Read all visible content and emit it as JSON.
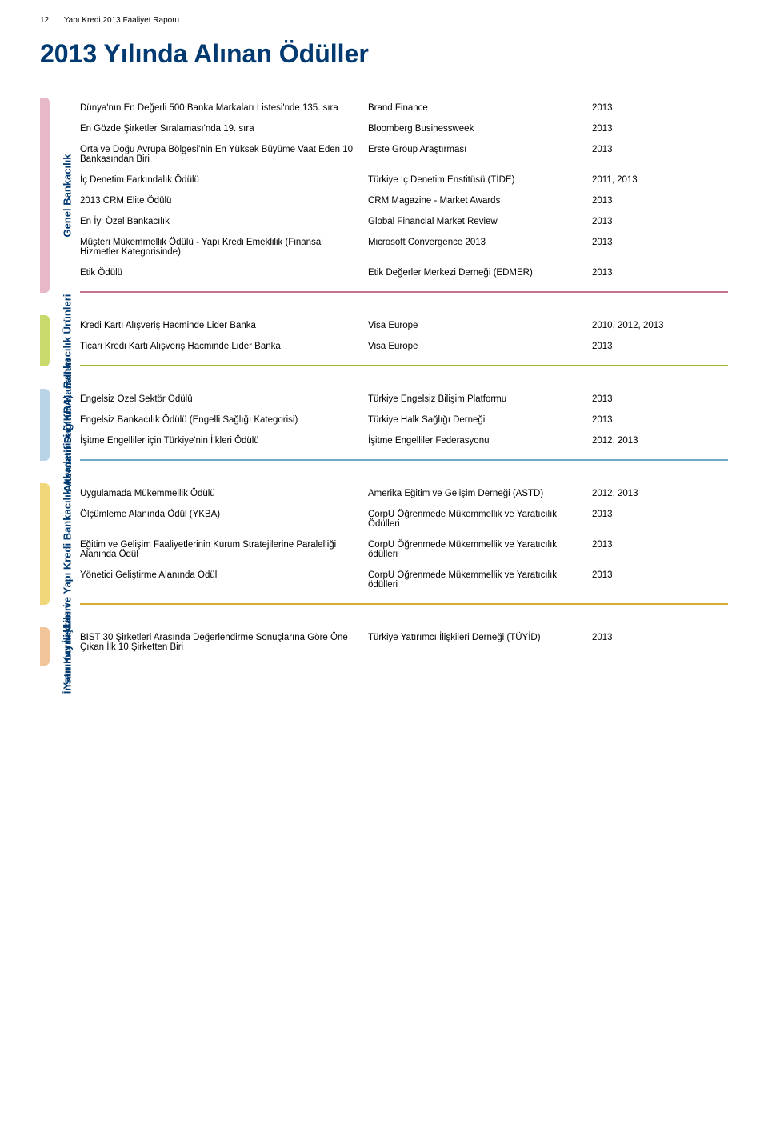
{
  "header": {
    "page_num": "12",
    "doc_title": "Yapı Kredi 2013 Faaliyet Raporu"
  },
  "title": "2013 Yılında Alınan Ödüller",
  "colors": {
    "title": "#003a70",
    "s1_tab": "#e6b8c8",
    "s1_border": "#c4738f",
    "s2_tab": "#c9d96a",
    "s2_border": "#9fb82e",
    "s3_tab": "#b8d4e6",
    "s3_border": "#6fa8c9",
    "s4_tab": "#f2d67a",
    "s4_border": "#d6af2e",
    "s5_tab": "#f2c49a",
    "s5_border": "#d68a3e"
  },
  "sections": [
    {
      "label": "Genel Bankacılık",
      "rows": [
        {
          "c1": "Dünya'nın En Değerli 500 Banka Markaları Listesi'nde 135. sıra",
          "c2": "Brand Finance",
          "c3": "2013"
        },
        {
          "c1": "En Gözde Şirketler Sıralaması'nda 19. sıra",
          "c2": "Bloomberg Businessweek",
          "c3": "2013"
        },
        {
          "c1": "Orta ve Doğu Avrupa Bölgesi'nin En Yüksek Büyüme Vaat Eden 10 Bankasından Biri",
          "c2": "Erste Group Araştırması",
          "c3": "2013"
        },
        {
          "c1": "İç Denetim Farkındalık Ödülü",
          "c2": "Türkiye İç Denetim Enstitüsü (TİDE)",
          "c3": "2011, 2013"
        },
        {
          "c1": "2013 CRM Elite Ödülü",
          "c2": "CRM Magazine - Market Awards",
          "c3": "2013"
        },
        {
          "c1": "En İyi Özel Bankacılık",
          "c2": "Global Financial Market Review",
          "c3": "2013"
        },
        {
          "c1": "Müşteri Mükemmellik Ödülü - Yapı Kredi Emeklilik (Finansal Hizmetler Kategorisinde)",
          "c2": "Microsoft Convergence 2013",
          "c3": "2013"
        },
        {
          "c1": "Etik Ödülü",
          "c2": "Etik Değerler Merkezi Derneği (EDMER)",
          "c3": "2013"
        }
      ]
    },
    {
      "label": "Bankacılık Ürünleri",
      "rows": [
        {
          "c1": "Kredi Kartı Alışveriş Hacminde Lider Banka",
          "c2": "Visa Europe",
          "c3": "2010, 2012, 2013"
        },
        {
          "c1": "Ticari Kredi Kartı Alışveriş Hacminde Lider Banka",
          "c2": "Visa Europe",
          "c3": "2013"
        }
      ]
    },
    {
      "label": "Alternatif Dağıtım Kanalları",
      "rows": [
        {
          "c1": "Engelsiz Özel Sektör Ödülü",
          "c2": "Türkiye Engelsiz Bilişim Platformu",
          "c3": "2013"
        },
        {
          "c1": "Engelsiz Bankacılık Ödülü (Engelli Sağlığı Kategorisi)",
          "c2": "Türkiye Halk Sağlığı Derneği",
          "c3": "2013"
        },
        {
          "c1": "İşitme Engelliler için Türkiye'nin İlkleri Ödülü",
          "c2": "İşitme Engelliler Federasyonu",
          "c3": "2012, 2013"
        }
      ]
    },
    {
      "label": "İnsan Kaynakları ve Yapı Kredi Bankacılık Akademisi (YKBA)",
      "rows": [
        {
          "c1": "Uygulamada Mükemmellik Ödülü",
          "c2": "Amerika Eğitim ve Gelişim Derneği (ASTD)",
          "c3": "2012, 2013"
        },
        {
          "c1": "Ölçümleme Alanında Ödül (YKBA)",
          "c2": "CorpU Öğrenmede Mükemmellik ve Yaratıcılık Ödülleri",
          "c3": "2013"
        },
        {
          "c1": "Eğitim ve Gelişim Faaliyetlerinin Kurum Stratejilerine Paralelliği Alanında Ödül",
          "c2": "CorpU Öğrenmede Mükemmellik ve Yaratıcılık ödülleri",
          "c3": "2013"
        },
        {
          "c1": "Yönetici Geliştirme Alanında Ödül",
          "c2": "CorpU Öğrenmede Mükemmellik ve Yaratıcılık ödülleri",
          "c3": "2013"
        }
      ]
    },
    {
      "label": "Yatırımcı İlişkileri",
      "rows": [
        {
          "c1": "BIST 30 Şirketleri Arasında Değerlendirme Sonuçlarına Göre Öne Çıkan İlk 10 Şirketten Biri",
          "c2": "Türkiye Yatırımcı İlişkileri Derneği (TÜYİD)",
          "c3": "2013"
        }
      ]
    }
  ]
}
